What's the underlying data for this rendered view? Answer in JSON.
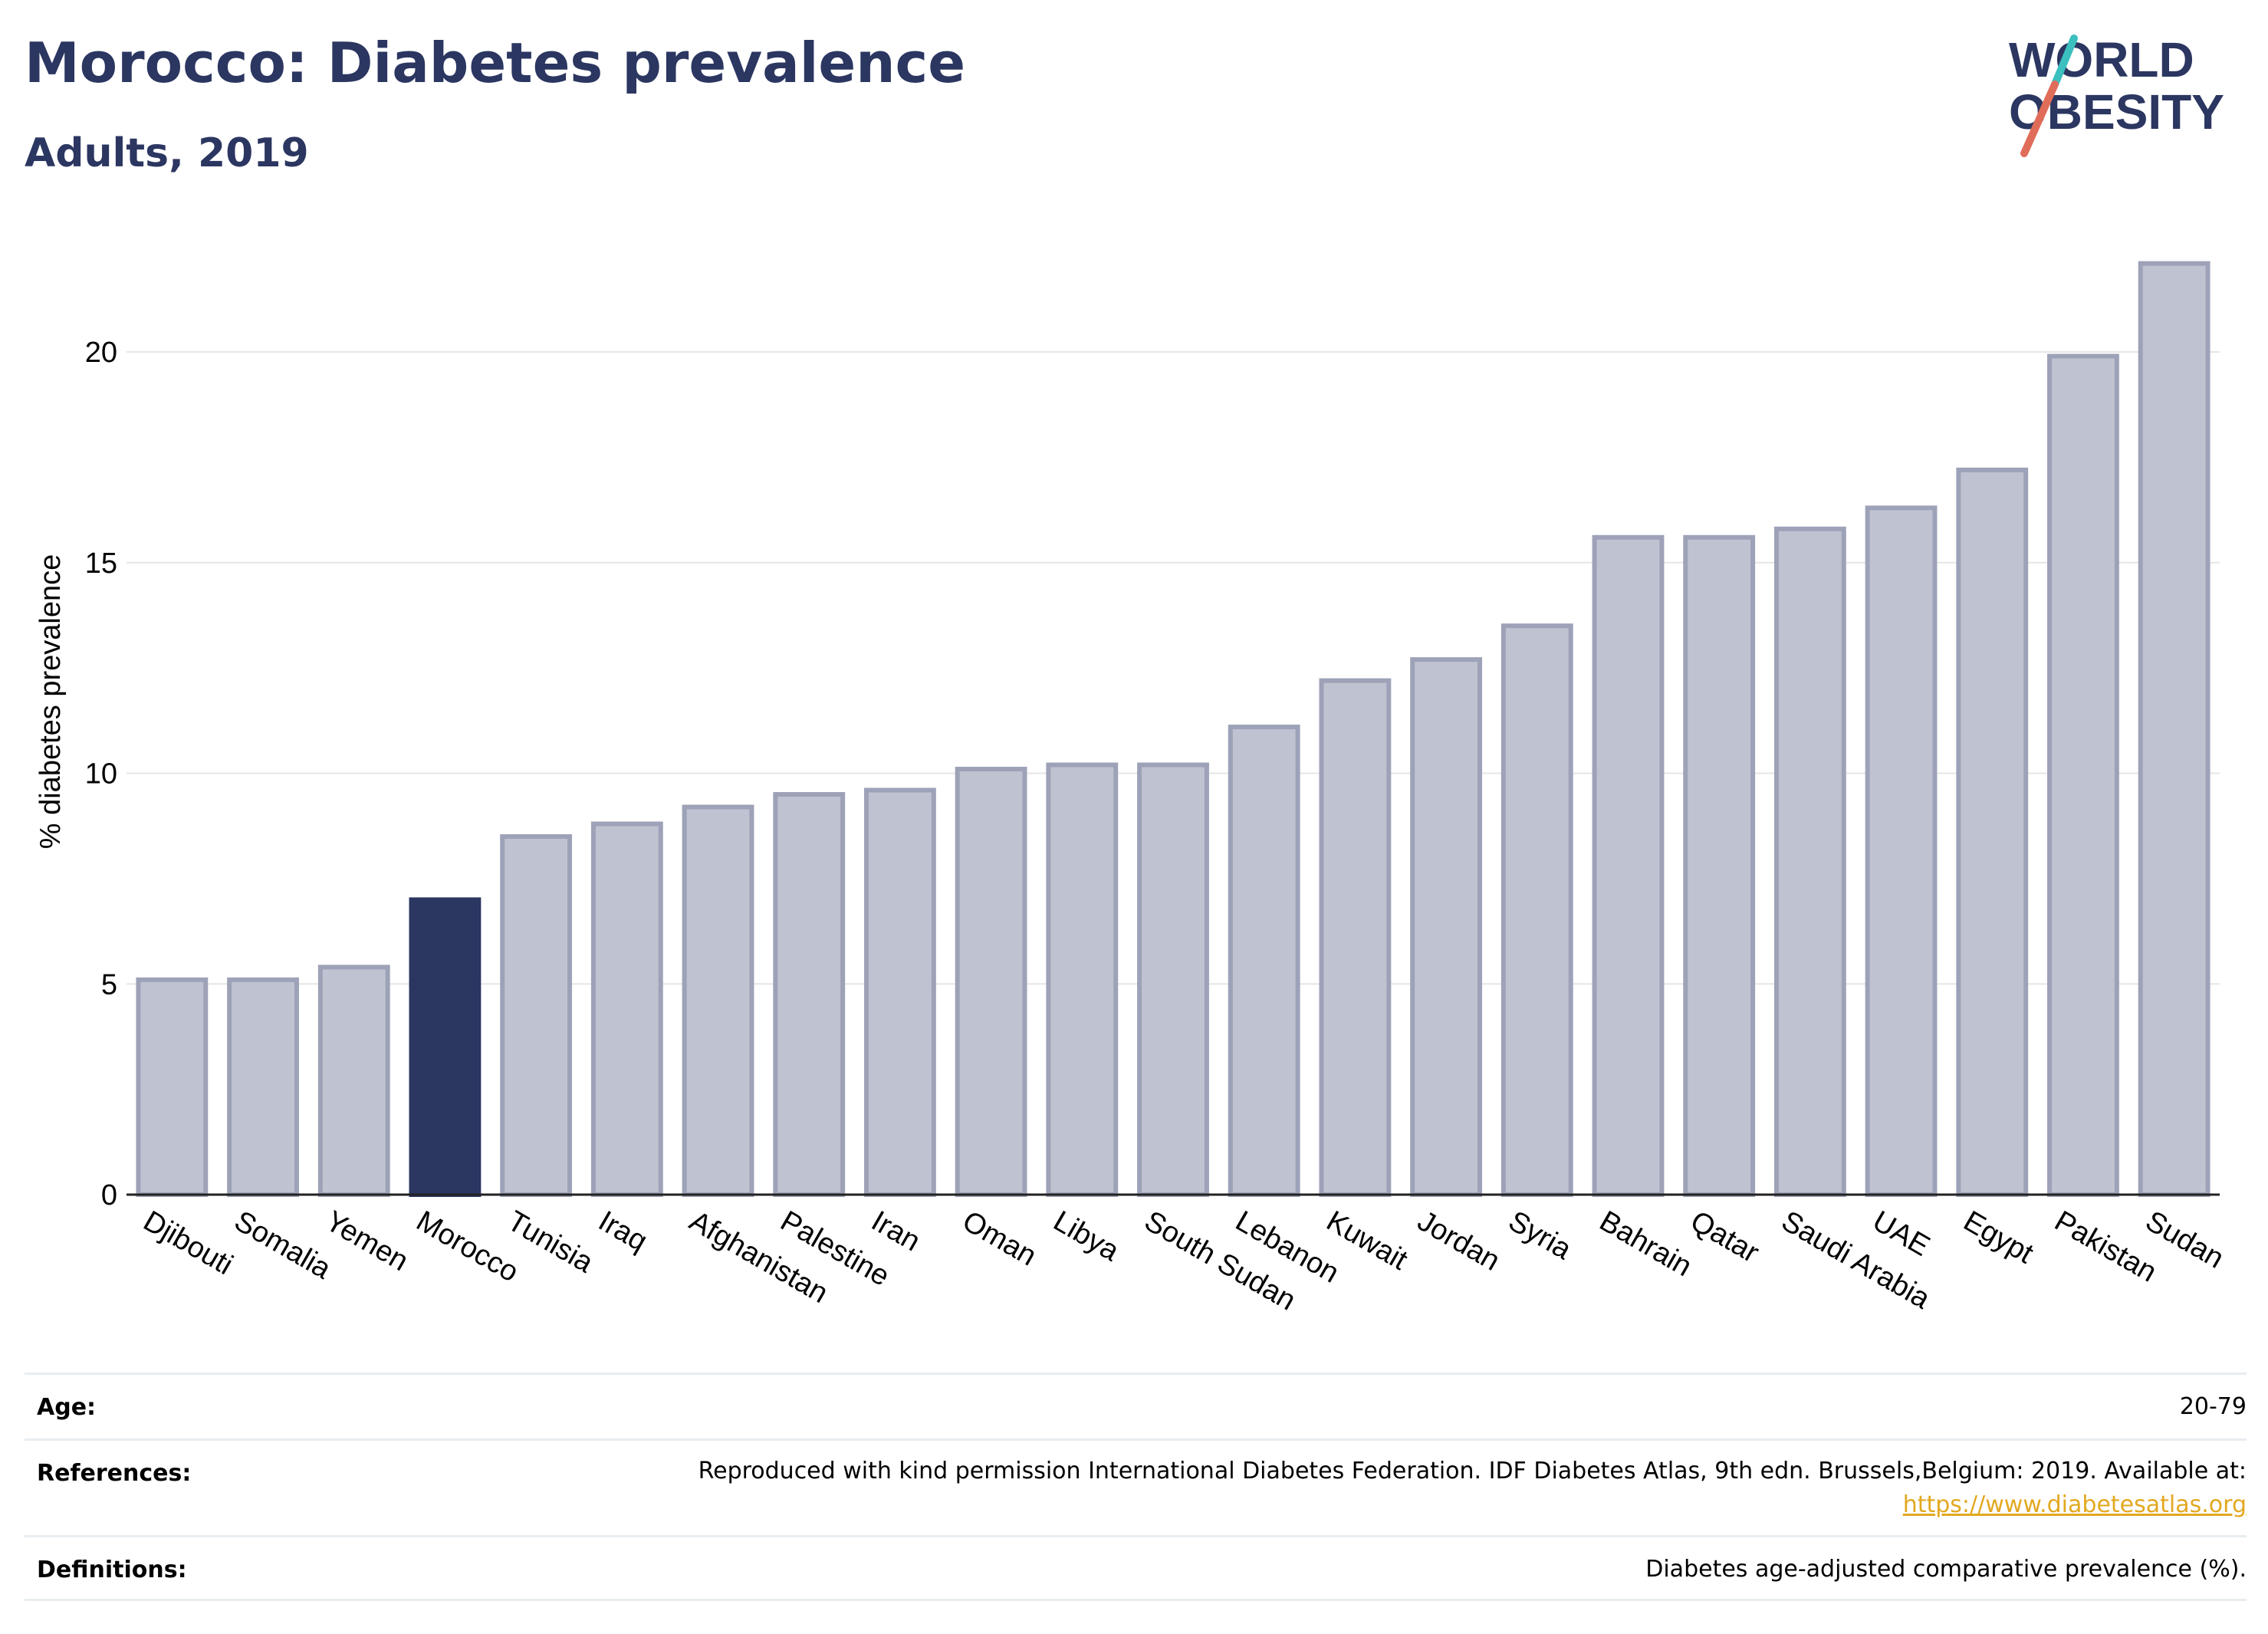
{
  "header": {
    "title": "Morocco: Diabetes prevalence",
    "subtitle": "Adults, 2019"
  },
  "logo": {
    "line1": "WORLD",
    "line2": "OBESITY",
    "text_color": "#2b3661",
    "accent_teal": "#3bbfbf",
    "accent_red": "#e06c5a"
  },
  "chart_data": {
    "type": "bar",
    "title": "Morocco: Diabetes prevalence",
    "subtitle": "Adults, 2019",
    "xlabel": "",
    "ylabel": "% diabetes prevalence",
    "ylim": [
      0,
      23
    ],
    "yticks": [
      0,
      5,
      10,
      15,
      20
    ],
    "grid": true,
    "highlight_category": "Morocco",
    "colors": {
      "default_fill": "#bfc2d0",
      "default_stroke": "#9da2b8",
      "highlight_fill": "#2b3661"
    },
    "categories": [
      "Djibouti",
      "Somalia",
      "Yemen",
      "Morocco",
      "Tunisia",
      "Iraq",
      "Afghanistan",
      "Palestine",
      "Iran",
      "Oman",
      "Libya",
      "South Sudan",
      "Lebanon",
      "Kuwait",
      "Jordan",
      "Syria",
      "Bahrain",
      "Qatar",
      "Saudi Arabia",
      "UAE",
      "Egypt",
      "Pakistan",
      "Sudan"
    ],
    "values": [
      5.1,
      5.1,
      5.4,
      7.0,
      8.5,
      8.8,
      9.2,
      9.5,
      9.6,
      10.1,
      10.2,
      10.2,
      11.1,
      12.2,
      12.7,
      13.5,
      15.6,
      15.6,
      15.8,
      16.3,
      17.2,
      19.9,
      22.1
    ]
  },
  "meta": {
    "age_label": "Age:",
    "age_value": "20-79",
    "references_label": "References:",
    "references_value": "Reproduced with kind permission International Diabetes Federation. IDF Diabetes Atlas, 9th edn. Brussels,Belgium: 2019. Available at:",
    "references_link": "https://www.diabetesatlas.org",
    "definitions_label": "Definitions:",
    "definitions_value": "Diabetes age-adjusted comparative prevalence (%)."
  }
}
